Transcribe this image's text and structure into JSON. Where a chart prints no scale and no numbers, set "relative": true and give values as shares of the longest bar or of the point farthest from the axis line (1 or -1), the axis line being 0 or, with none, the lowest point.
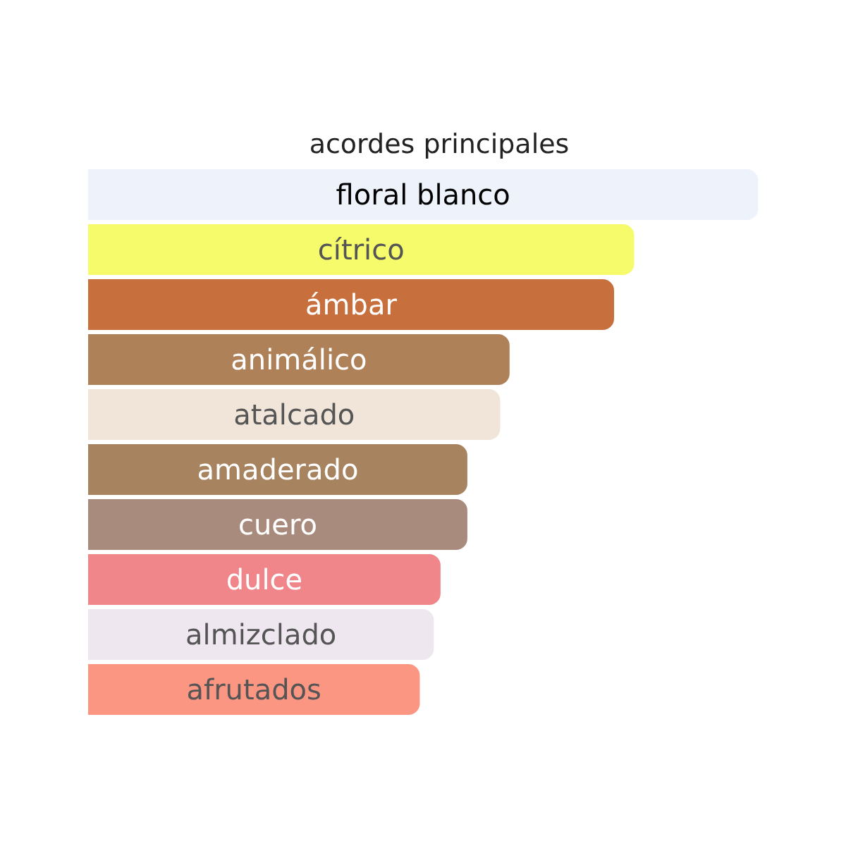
{
  "chart_data": {
    "type": "bar",
    "orientation": "horizontal",
    "relative": true,
    "title": "acordes principales",
    "categories": [
      "floral blanco",
      "cítrico",
      "ámbar",
      "animálico",
      "atalcado",
      "amaderado",
      "cuero",
      "dulce",
      "almizclado",
      "afrutados"
    ],
    "values": [
      1,
      0.815,
      0.785,
      0.629,
      0.615,
      0.566,
      0.566,
      0.526,
      0.516,
      0.495
    ],
    "colors": [
      "#edf2fb",
      "#f5fb6a",
      "#c8703d",
      "#ae8159",
      "#f1e5d9",
      "#a8835f",
      "#a88b7d",
      "#f1868a",
      "#efe7f0",
      "#fb9682"
    ],
    "grid": false
  }
}
